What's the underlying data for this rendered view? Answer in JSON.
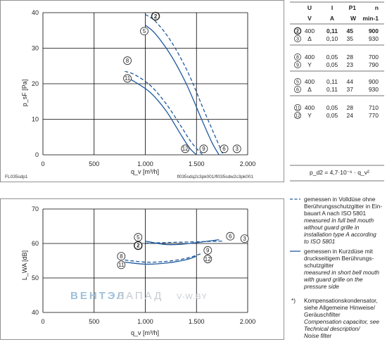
{
  "chart_data": [
    {
      "type": "line",
      "ylabel": "p_sF [Pa]",
      "xlabel": "q_v [m³/h]",
      "xlim": [
        0,
        2000
      ],
      "ylim": [
        0,
        40
      ],
      "x_ticks": [
        "0",
        "500",
        "1.000",
        "1.500",
        "2.000"
      ],
      "y_ticks": [
        "0",
        "10",
        "20",
        "30",
        "40"
      ],
      "grid": true,
      "footer_left": "FL035sdp1",
      "footer_right": "fl035sdq2c3pk001/fl035sdw2c3pk001",
      "series": [
        {
          "name": "2",
          "style": "dashed",
          "x": [
            1000,
            1100,
            1250,
            1420,
            1580,
            1700,
            1760
          ],
          "y": [
            39.5,
            37.5,
            32,
            23,
            12,
            4,
            0
          ]
        },
        {
          "name": "5",
          "style": "solid",
          "x": [
            1000,
            1100,
            1250,
            1400,
            1550,
            1650,
            1720
          ],
          "y": [
            36.5,
            34,
            28,
            20,
            10,
            3.5,
            0
          ]
        },
        {
          "name": "8",
          "style": "dashed",
          "x": [
            800,
            900,
            1050,
            1200,
            1350,
            1450,
            1560
          ],
          "y": [
            23.5,
            22.5,
            19.5,
            14.5,
            8,
            3.5,
            0
          ]
        },
        {
          "name": "11",
          "style": "solid",
          "x": [
            800,
            900,
            1050,
            1200,
            1330,
            1430,
            1500
          ],
          "y": [
            22,
            20.5,
            17.5,
            12.5,
            6.5,
            2,
            0
          ]
        }
      ],
      "curve_labels": [
        {
          "label": "2",
          "x": 1100,
          "y": 39,
          "bold": true
        },
        {
          "label": "5",
          "x": 990,
          "y": 34.8
        },
        {
          "label": "8",
          "x": 825,
          "y": 26.5
        },
        {
          "label": "11",
          "x": 825,
          "y": 21.5
        },
        {
          "label": "12",
          "x": 1390,
          "y": 1.7
        },
        {
          "label": "9",
          "x": 1570,
          "y": 1.7
        },
        {
          "label": "6",
          "x": 1770,
          "y": 1.7
        },
        {
          "label": "3",
          "x": 1895,
          "y": 1.7
        }
      ]
    },
    {
      "type": "line",
      "ylabel": "L_WA [dB]",
      "xlabel": "q_v [m³/h]",
      "xlim": [
        0,
        2000
      ],
      "ylim": [
        40,
        70
      ],
      "x_ticks": [
        "0",
        "500",
        "1.000",
        "1.500",
        "2.000"
      ],
      "y_ticks": [
        "40",
        "50",
        "60",
        "70"
      ],
      "grid": true,
      "series": [
        {
          "name": "2-3",
          "style": "dashed",
          "x": [
            1000,
            1250,
            1500,
            1760
          ],
          "y": [
            60.1,
            60.3,
            60.5,
            60.7
          ]
        },
        {
          "name": "5-6",
          "style": "solid",
          "x": [
            1000,
            1200,
            1400,
            1720
          ],
          "y": [
            60.7,
            59.7,
            59.9,
            61.1
          ]
        },
        {
          "name": "8-9",
          "style": "dashed",
          "x": [
            800,
            1000,
            1200,
            1400,
            1560
          ],
          "y": [
            55.2,
            54.6,
            54.8,
            55.7,
            57.2
          ]
        },
        {
          "name": "11-12",
          "style": "solid",
          "x": [
            800,
            1000,
            1200,
            1400,
            1500
          ],
          "y": [
            54.6,
            54.0,
            54.3,
            55.3,
            56.3
          ]
        }
      ],
      "curve_labels": [
        {
          "label": "5",
          "x": 930,
          "y": 61.8
        },
        {
          "label": "2",
          "x": 930,
          "y": 59.4,
          "bold": true
        },
        {
          "label": "6",
          "x": 1830,
          "y": 62.1
        },
        {
          "label": "3",
          "x": 1970,
          "y": 61.4
        },
        {
          "label": "8",
          "x": 765,
          "y": 56.3
        },
        {
          "label": "11",
          "x": 765,
          "y": 53.8
        },
        {
          "label": "9",
          "x": 1610,
          "y": 58.0
        },
        {
          "label": "12",
          "x": 1610,
          "y": 55.5
        }
      ]
    }
  ],
  "table": {
    "headers": [
      "U",
      "I",
      "P1",
      "n"
    ],
    "units": [
      "V",
      "A",
      "W",
      "min-1"
    ],
    "groups": [
      [
        {
          "c": "2",
          "U": "400",
          "I": "0,11",
          "P": "45",
          "n": "900",
          "bold": true
        },
        {
          "c": "3",
          "U": "Δ",
          "I": "0,10",
          "P": "35",
          "n": "930"
        }
      ],
      [
        {
          "c": "8",
          "U": "400",
          "I": "0,05",
          "P": "28",
          "n": "700"
        },
        {
          "c": "9",
          "U": "Y",
          "I": "0,05",
          "P": "23",
          "n": "790"
        }
      ],
      [
        {
          "c": "5",
          "U": "400",
          "I": "0,11",
          "P": "44",
          "n": "900"
        },
        {
          "c": "6",
          "U": "Δ",
          "I": "0,11",
          "P": "37",
          "n": "930"
        }
      ],
      [
        {
          "c": "11",
          "U": "400",
          "I": "0,05",
          "P": "28",
          "n": "710"
        },
        {
          "c": "12",
          "U": "Y",
          "I": "0,05",
          "P": "24",
          "n": "770"
        }
      ]
    ],
    "formula": "p_d2 = 4,7·10⁻⁶ · q_v²"
  },
  "legend": {
    "dashed": [
      "gemessen in Volldüse ohne",
      "Berührungsschutzgitter in Ein-",
      "bauart A nach ISO 5801"
    ],
    "dashed_en": [
      "measured in full bell mouth",
      "without guard grille in",
      "installation type A according",
      "to ISO 5801"
    ],
    "solid": [
      "gemessen in Kurzdüse mit",
      "druckseitigem Berührungs-",
      "schutzgitter"
    ],
    "solid_en": [
      "measured in short bell mouth",
      "with guard grille on the",
      "pressure side"
    ],
    "note_mark": "*)",
    "note": [
      "Kompensationskondensator,",
      "siehe Allgemeine Hinweise/",
      "Geräuschfilter"
    ],
    "note_en": [
      "Compensation capacitor, see",
      "Technical description/",
      "Noise filter"
    ]
  },
  "watermark": {
    "part1": "ВЕНТЭЛ",
    "part2": "ЗАПАД",
    "part3": "V-W.BY"
  },
  "colors": {
    "curve": "#1f5a9e",
    "grid": "#000000",
    "watermark_blue": "#9fc0dc",
    "watermark_gray": "#c6cbd0"
  }
}
